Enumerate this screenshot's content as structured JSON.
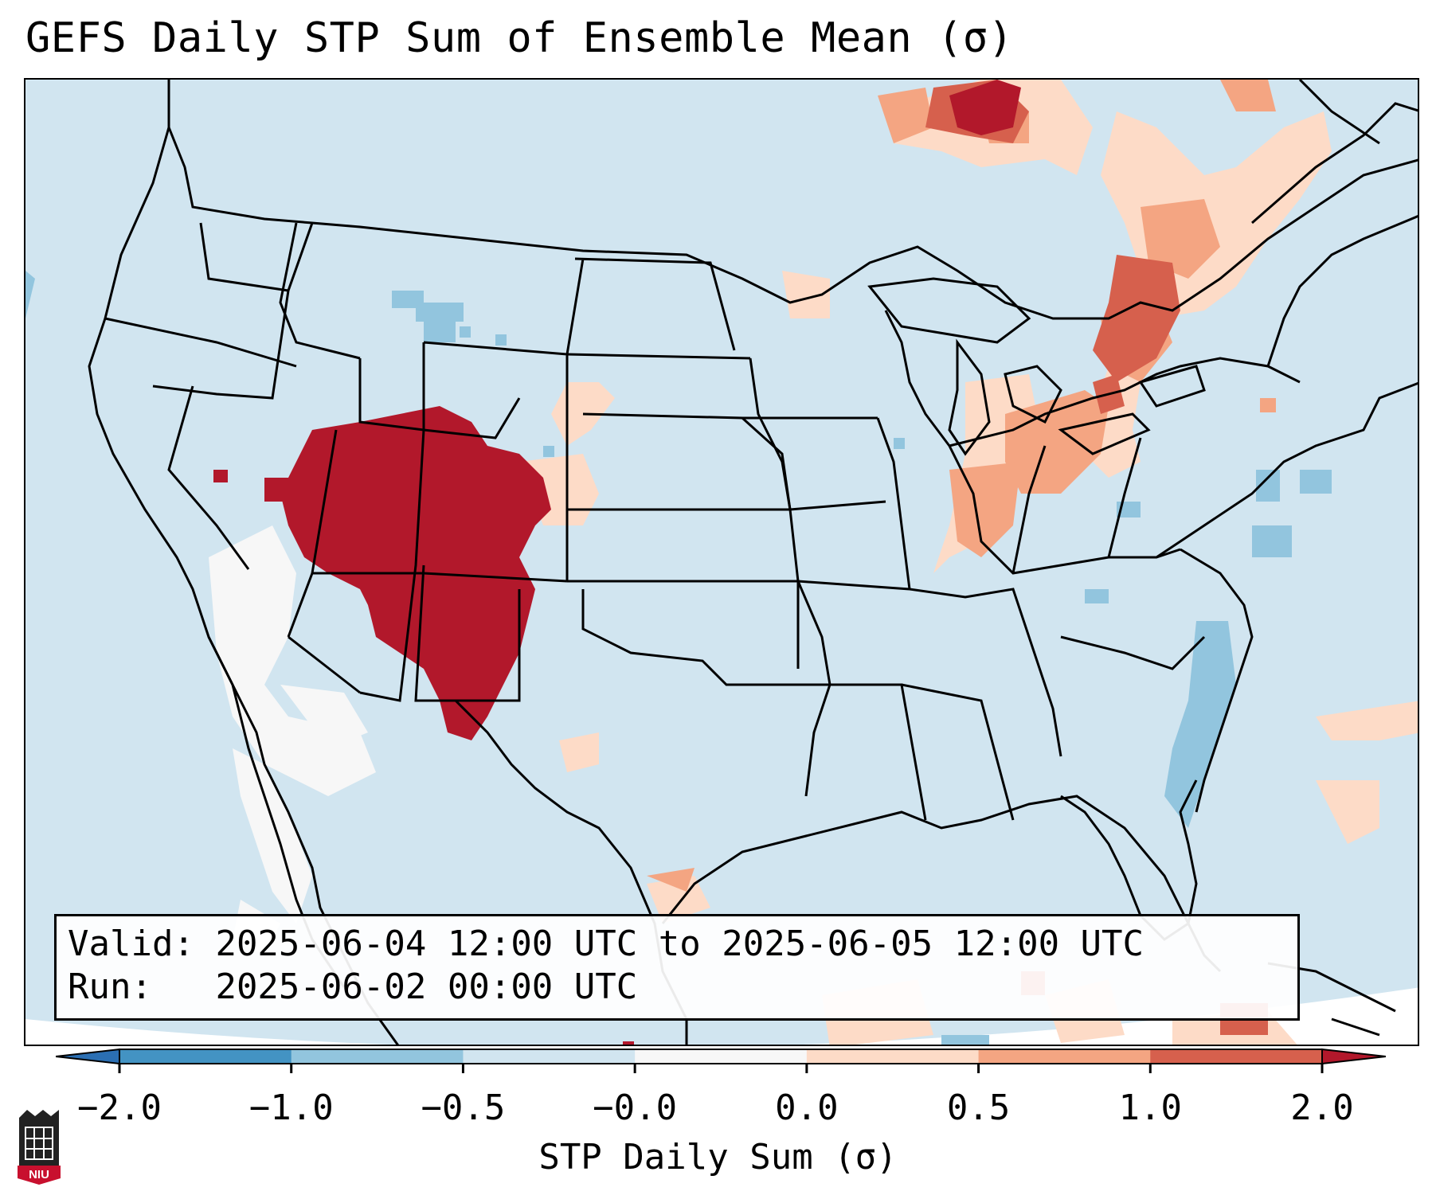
{
  "title": "GEFS Daily STP Sum of Ensemble Mean (σ)",
  "valid_label": "Valid:",
  "valid_range": "2025-06-04 12:00 UTC to 2025-06-05 12:00 UTC",
  "run_label": "Run:",
  "run_time": "2025-06-02 00:00 UTC",
  "colorbar": {
    "label": "STP Daily Sum (σ)",
    "ticks": [
      "−2.0",
      "−1.0",
      "−0.5",
      "−0.0",
      "0.0",
      "0.5",
      "1.0",
      "2.0"
    ],
    "bins": [
      {
        "range": "< -2.0",
        "color": "#2b6fb3"
      },
      {
        "range": "-2.0 to -1.0",
        "color": "#4393c3"
      },
      {
        "range": "-1.0 to -0.5",
        "color": "#92c5de"
      },
      {
        "range": "-0.5 to -0.0",
        "color": "#d1e5f0"
      },
      {
        "range": "-0.0 to 0.0",
        "color": "#f7f7f7"
      },
      {
        "range": "0.0 to 0.5",
        "color": "#fddbc7"
      },
      {
        "range": "0.5 to 1.0",
        "color": "#f4a582"
      },
      {
        "range": "1.0 to 2.0",
        "color": "#d6604d"
      },
      {
        "range": "> 2.0",
        "color": "#b2182b"
      }
    ]
  },
  "colors": {
    "background": "#d1e5f0",
    "neutral": "#f7f7f7",
    "light_pos": "#fddbc7",
    "mid_pos": "#f4a582",
    "strong_pos": "#d6604d",
    "max_pos": "#b2182b",
    "light_neg": "#92c5de"
  },
  "logo": {
    "text": "NIU",
    "icon": "niu-university-seal-icon"
  }
}
